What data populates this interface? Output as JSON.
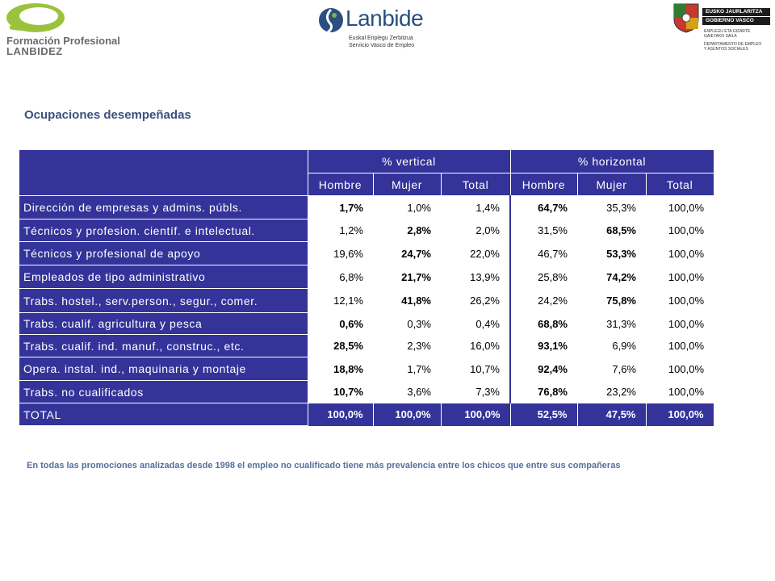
{
  "logos": {
    "fp": {
      "line1": "Formación Profesional",
      "line2": "LANBIDEZ"
    },
    "lanbide": {
      "name": "Lanbide",
      "sub1": "Euskal Enplegu Zerbitzua",
      "sub2": "Servicio Vasco de Empleo"
    },
    "gv": {
      "bar1": "EUSKO JAURLARITZA",
      "bar2": "GOBIERNO VASCO",
      "s1": "ENPLEGU ETA GIZARTE",
      "s2": "GAIETAKO SAILA",
      "s3": "DEPARTAMENTO DE EMPLEO",
      "s4": "Y ASUNTOS SOCIALES"
    }
  },
  "title": "Ocupaciones desempeñadas",
  "table": {
    "group_headers": [
      "% vertical",
      "% horizontal"
    ],
    "sub_headers": [
      "Hombre",
      "Mujer",
      "Total",
      "Hombre",
      "Mujer",
      "Total"
    ],
    "rows": [
      {
        "label": "Dirección de empresas y admins. públs.",
        "values": [
          "1,7%",
          "1,0%",
          "1,4%",
          "64,7%",
          "35,3%",
          "100,0%"
        ],
        "bold": [
          0,
          3
        ]
      },
      {
        "label": "Técnicos y profesion. científ. e intelectual.",
        "values": [
          "1,2%",
          "2,8%",
          "2,0%",
          "31,5%",
          "68,5%",
          "100,0%"
        ],
        "bold": [
          1,
          4
        ]
      },
      {
        "label": "Técnicos y profesional de apoyo",
        "values": [
          "19,6%",
          "24,7%",
          "22,0%",
          "46,7%",
          "53,3%",
          "100,0%"
        ],
        "bold": [
          1,
          4
        ]
      },
      {
        "label": "Empleados de tipo administrativo",
        "values": [
          "6,8%",
          "21,7%",
          "13,9%",
          "25,8%",
          "74,2%",
          "100,0%"
        ],
        "bold": [
          1,
          4
        ]
      },
      {
        "label": "Trabs. hostel., serv.person., segur., comer.",
        "values": [
          "12,1%",
          "41,8%",
          "26,2%",
          "24,2%",
          "75,8%",
          "100,0%"
        ],
        "bold": [
          1,
          4
        ]
      },
      {
        "label": "Trabs. cualif. agricultura y pesca",
        "values": [
          "0,6%",
          "0,3%",
          "0,4%",
          "68,8%",
          "31,3%",
          "100,0%"
        ],
        "bold": [
          0,
          3
        ]
      },
      {
        "label": "Trabs. cualif. ind. manuf., construc., etc.",
        "values": [
          "28,5%",
          "2,3%",
          "16,0%",
          "93,1%",
          "6,9%",
          "100,0%"
        ],
        "bold": [
          0,
          3
        ]
      },
      {
        "label": "Opera. instal. ind., maquinaria y montaje",
        "values": [
          "18,8%",
          "1,7%",
          "10,7%",
          "92,4%",
          "7,6%",
          "100,0%"
        ],
        "bold": [
          0,
          3
        ]
      },
      {
        "label": "Trabs. no cualificados",
        "values": [
          "10,7%",
          "3,6%",
          "7,3%",
          "76,8%",
          "23,2%",
          "100,0%"
        ],
        "bold": [
          0,
          3
        ]
      }
    ],
    "total": {
      "label": "TOTAL",
      "values": [
        "100,0%",
        "100,0%",
        "100,0%",
        "52,5%",
        "47,5%",
        "100,0%"
      ]
    }
  },
  "note": "En todas las promociones analizadas desde 1998 el empleo no cualificado tiene más prevalencia entre los chicos que entre sus compañeras",
  "colors": {
    "table_header": "#33339a",
    "title": "#3b4f7f",
    "note": "#55709c",
    "logo_green": "#9bc23c"
  }
}
